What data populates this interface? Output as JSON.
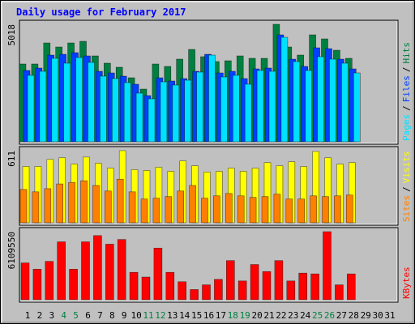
{
  "chart_data": [
    {
      "type": "bar",
      "title": "Daily usage for February 2017",
      "ylim": [
        0,
        5018
      ],
      "yticks": [
        5018
      ],
      "legend_separator": "/",
      "series": [
        {
          "name": "Pages",
          "color": "#00e0ff",
          "values": [
            2837,
            3010,
            3564,
            3356,
            3598,
            3391,
            2803,
            2699,
            2526,
            2076,
            1834,
            2560,
            2422,
            2630,
            2976,
            3702,
            2768,
            2837,
            2457,
            3045,
            3010,
            4463,
            3425,
            3045,
            3633,
            3529,
            3356,
            2941,
            null,
            null,
            null
          ]
        },
        {
          "name": "Files",
          "color": "#0040ff",
          "values": [
            3045,
            3149,
            3702,
            3737,
            3806,
            3668,
            3010,
            2941,
            2803,
            2457,
            1972,
            2733,
            2595,
            2699,
            3010,
            3737,
            2941,
            3010,
            2699,
            3114,
            3149,
            4567,
            3529,
            3218,
            4014,
            3979,
            3529,
            3114,
            null,
            null,
            null
          ]
        },
        {
          "name": "Hits",
          "color": "#008040",
          "values": [
            3322,
            3322,
            4222,
            4049,
            4222,
            4291,
            3668,
            3357,
            3184,
            2734,
            2249,
            3322,
            3218,
            3530,
            3945,
            3634,
            3426,
            3461,
            3668,
            3564,
            3564,
            5018,
            4049,
            3703,
            4568,
            4395,
            3910,
            3564,
            null,
            null,
            null
          ]
        }
      ]
    },
    {
      "type": "bar",
      "ylim": [
        0,
        611
      ],
      "yticks": [
        611
      ],
      "legend_separator": "/",
      "series": [
        {
          "name": "Sites",
          "color": "#ff8000",
          "values": [
            282,
            262,
            289,
            329,
            342,
            356,
            316,
            269,
            369,
            262,
            201,
            208,
            222,
            269,
            316,
            208,
            228,
            248,
            228,
            215,
            222,
            242,
            201,
            201,
            228,
            222,
            228,
            235,
            null,
            null,
            null
          ]
        },
        {
          "name": "Visits",
          "color": "#ffff00",
          "values": [
            477,
            477,
            537,
            551,
            497,
            557,
            504,
            463,
            611,
            450,
            443,
            470,
            436,
            524,
            483,
            430,
            436,
            463,
            436,
            463,
            510,
            483,
            517,
            477,
            604,
            551,
            497,
            510,
            null,
            null,
            null
          ]
        }
      ]
    },
    {
      "type": "bar",
      "ylim": [
        0,
        6109550
      ],
      "yticks": [
        6109550
      ],
      "categories": [
        "1",
        "2",
        "3",
        "4",
        "5",
        "6",
        "7",
        "8",
        "9",
        "10",
        "11",
        "12",
        "13",
        "14",
        "15",
        "16",
        "17",
        "18",
        "19",
        "20",
        "21",
        "22",
        "23",
        "24",
        "25",
        "26",
        "27",
        "28",
        "29",
        "30",
        "31"
      ],
      "category_colors": [
        "#000000",
        "#000000",
        "#000000",
        "#008040",
        "#008040",
        "#000000",
        "#000000",
        "#000000",
        "#000000",
        "#000000",
        "#008040",
        "#008040",
        "#000000",
        "#000000",
        "#000000",
        "#000000",
        "#000000",
        "#008040",
        "#008040",
        "#000000",
        "#000000",
        "#000000",
        "#000000",
        "#000000",
        "#008040",
        "#008040",
        "#000000",
        "#000000",
        "#000000",
        "#000000",
        "#000000"
      ],
      "series": [
        {
          "name": "KBytes",
          "color": "#ff0000",
          "values": [
            3300575,
            2738775,
            3441025,
            5196650,
            2738775,
            5196650,
            5758450,
            4985975,
            5407325,
            2457875,
            2036525,
            4634850,
            2457875,
            1615175,
            912925,
            1334275,
            1825850,
            3511250,
            1685400,
            3160125,
            2528100,
            3511250,
            1685400,
            2387650,
            2317425,
            6109550,
            1334275,
            2317425,
            null,
            null,
            null
          ]
        }
      ]
    }
  ]
}
